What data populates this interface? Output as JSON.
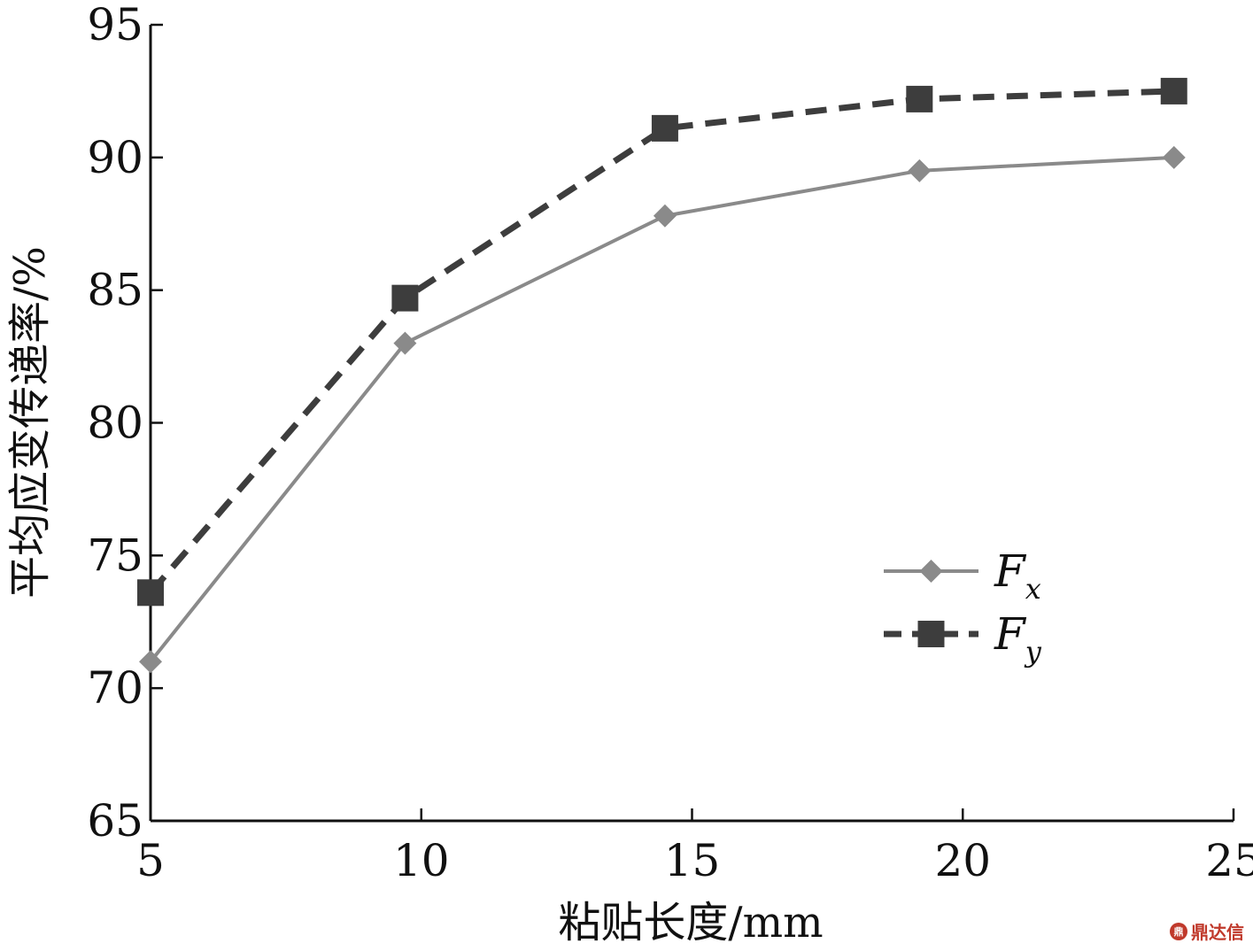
{
  "chart_data": {
    "type": "line",
    "xlabel": "粘贴长度/mm",
    "ylabel": "平均应变传递率/%",
    "xlim": [
      5,
      25
    ],
    "ylim": [
      65,
      95
    ],
    "xticks": [
      5,
      10,
      15,
      20,
      25
    ],
    "yticks": [
      65,
      70,
      75,
      80,
      85,
      90,
      95
    ],
    "grid": false,
    "legend_position": "lower-right",
    "series": [
      {
        "name": "Fx",
        "label_main": "F",
        "label_sub": "x",
        "x": [
          5,
          9.7,
          14.5,
          19.2,
          23.9
        ],
        "y": [
          71.0,
          83.0,
          87.8,
          89.5,
          90.0
        ],
        "color": "#8a8a8a",
        "line_style": "solid",
        "marker": "diamond"
      },
      {
        "name": "Fy",
        "label_main": "F",
        "label_sub": "y",
        "x": [
          5,
          9.7,
          14.5,
          19.2,
          23.9
        ],
        "y": [
          73.6,
          84.7,
          91.1,
          92.2,
          92.5
        ],
        "color": "#3d3d3d",
        "line_style": "dashed",
        "marker": "square"
      }
    ]
  },
  "watermark": {
    "icon": "logo-icon",
    "icon_text": "鼎",
    "text": "鼎达信"
  }
}
